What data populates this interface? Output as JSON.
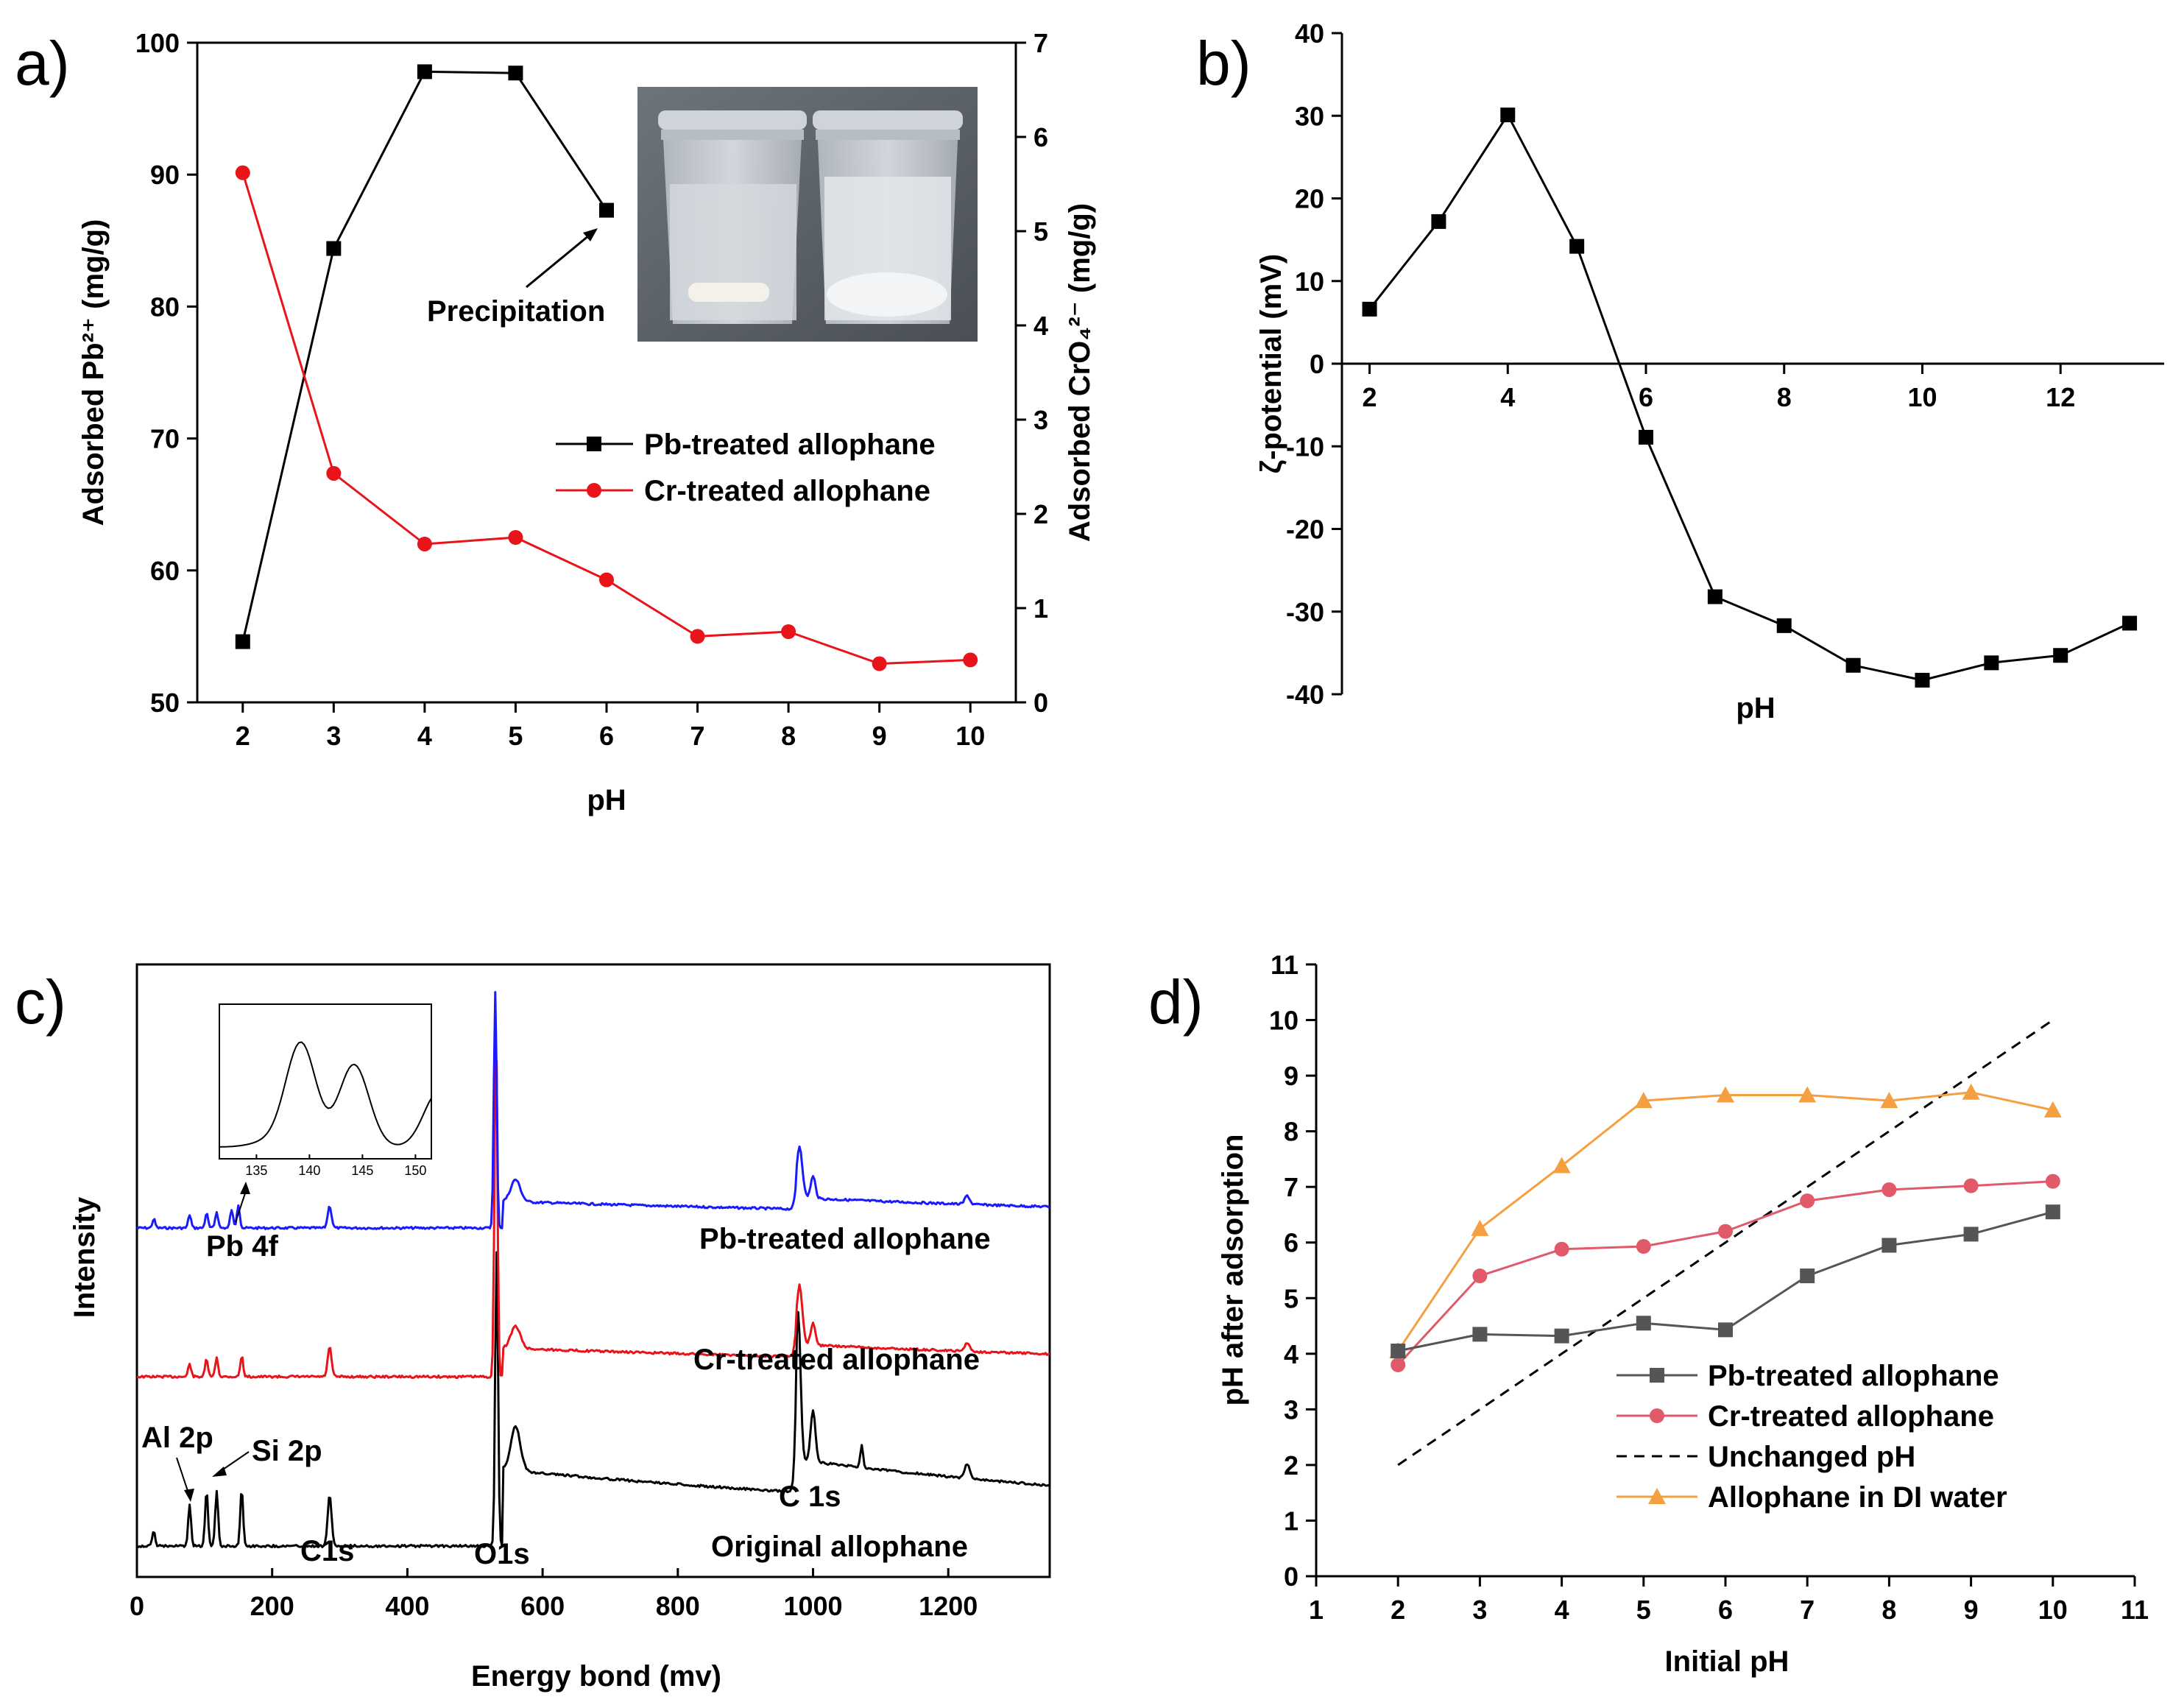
{
  "chart_data": [
    {
      "panel": "a)",
      "type": "line",
      "x": [
        2,
        3,
        4,
        5,
        6,
        7,
        8,
        9,
        10
      ],
      "xlabel": "pH",
      "ylabel_left": "Adsorbed Pb²⁺ (mg/g)",
      "ylabel_right": "Adsorbed CrO₄²⁻ (mg/g)",
      "xlim": [
        1.5,
        10.5
      ],
      "ylim_left": [
        50,
        100
      ],
      "ylim_right": [
        0,
        7
      ],
      "xticks": [
        "2",
        "3",
        "4",
        "5",
        "6",
        "7",
        "8",
        "9",
        "10"
      ],
      "yticks_left": [
        "50",
        "60",
        "70",
        "80",
        "90",
        "100"
      ],
      "yticks_right": [
        "0",
        "1",
        "2",
        "3",
        "4",
        "5",
        "6",
        "7"
      ],
      "series": [
        {
          "name": "Pb-treated allophane",
          "axis": "left",
          "color": "#000000",
          "marker": "square",
          "x": [
            2,
            3,
            4,
            5,
            6
          ],
          "values": [
            54.6,
            84.4,
            97.8,
            97.7,
            87.3
          ]
        },
        {
          "name": "Cr-treated allophane",
          "axis": "right",
          "color": "#e8141a",
          "marker": "circle",
          "x": [
            2,
            3,
            4,
            5,
            6,
            7,
            8,
            9,
            10
          ],
          "values": [
            5.62,
            2.43,
            1.68,
            1.75,
            1.3,
            0.7,
            0.75,
            0.41,
            0.45
          ]
        }
      ],
      "annotation": "Precipitation",
      "inset": "photo of two sample cups"
    },
    {
      "panel": "b)",
      "type": "line",
      "xlabel": "pH",
      "ylabel": "ζ-potential (mV)",
      "xlim": [
        1.6,
        13.5
      ],
      "ylim": [
        -40,
        40
      ],
      "xticks": [
        "2",
        "4",
        "6",
        "8",
        "10",
        "12"
      ],
      "yticks": [
        "-40",
        "-30",
        "-20",
        "-10",
        "0",
        "10",
        "20",
        "30",
        "40"
      ],
      "series": [
        {
          "name": "ζ-potential",
          "color": "#000000",
          "marker": "square",
          "x": [
            2,
            3,
            4,
            5,
            6,
            7,
            8,
            9,
            10,
            11,
            12,
            13
          ],
          "values": [
            6.6,
            17.2,
            30.1,
            14.2,
            -8.9,
            -28.2,
            -31.7,
            -36.5,
            -38.3,
            -36.2,
            -35.3,
            -31.4
          ]
        }
      ]
    },
    {
      "panel": "c)",
      "type": "line",
      "xlabel": "Energy bond (mv)",
      "ylabel": "Intensity",
      "xlim": [
        0,
        1350
      ],
      "xticks": [
        "0",
        "200",
        "400",
        "600",
        "800",
        "1000",
        "1200"
      ],
      "series_labels": [
        "Pb-treated allophane",
        "Cr-treated allophane",
        "Original allophane"
      ],
      "series_colors": [
        "#1a1aff",
        "#e8141a",
        "#000000"
      ],
      "annotations": [
        "Pb 4f",
        "Al 2p",
        "Si 2p",
        "C1s",
        "O1s",
        "C 1s"
      ],
      "inset_xticks": [
        "135",
        "140",
        "145",
        "150"
      ]
    },
    {
      "panel": "d)",
      "type": "line",
      "xlabel": "Initial pH",
      "ylabel": "pH after adsorption",
      "xlim": [
        1,
        11
      ],
      "ylim": [
        0,
        11
      ],
      "xticks": [
        "1",
        "2",
        "3",
        "4",
        "5",
        "6",
        "7",
        "8",
        "9",
        "10",
        "11"
      ],
      "yticks": [
        "0",
        "1",
        "2",
        "3",
        "4",
        "5",
        "6",
        "7",
        "8",
        "9",
        "10",
        "11"
      ],
      "x": [
        2,
        3,
        4,
        5,
        6,
        7,
        8,
        9,
        10
      ],
      "series": [
        {
          "name": "Pb-treated allophane",
          "color": "#555555",
          "marker": "square",
          "values": [
            4.05,
            4.35,
            4.32,
            4.55,
            4.43,
            5.4,
            5.95,
            6.15,
            6.55
          ]
        },
        {
          "name": "Cr-treated allophane",
          "color": "#e05a6a",
          "marker": "circle",
          "values": [
            3.8,
            5.4,
            5.88,
            5.93,
            6.2,
            6.75,
            6.95,
            7.02,
            7.1
          ]
        },
        {
          "name": "Unchanged pH",
          "color": "#000000",
          "marker": "none",
          "dash": true,
          "values": [
            2,
            3,
            4,
            5,
            6,
            7,
            8,
            9,
            10
          ]
        },
        {
          "name": "Allophane in DI water",
          "color": "#f5a040",
          "marker": "triangle",
          "values": [
            4.05,
            6.25,
            7.38,
            8.55,
            8.65,
            8.65,
            8.55,
            8.7,
            8.38
          ]
        }
      ]
    }
  ]
}
